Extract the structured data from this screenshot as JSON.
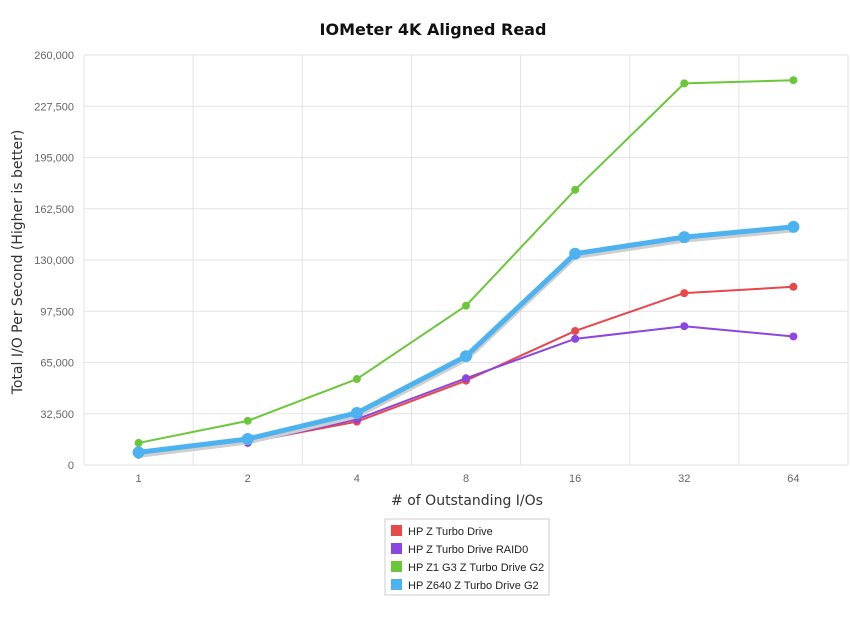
{
  "chart_data": {
    "type": "line",
    "title": "IOMeter 4K Aligned Read",
    "xlabel": "# of Outstanding I/Os",
    "ylabel": "Total I/O Per Second (Higher is better)",
    "categories": [
      "1",
      "2",
      "4",
      "8",
      "16",
      "32",
      "64"
    ],
    "y_ticks": [
      "0",
      "32,500",
      "65,000",
      "97,500",
      "130,000",
      "162,500",
      "195,000",
      "227,500",
      "260,000"
    ],
    "ylim": [
      0,
      260000
    ],
    "grid": true,
    "legend_position": "bottom-center",
    "series": [
      {
        "name": "HP Z Turbo Drive",
        "color": "#e8474b",
        "values": [
          7000,
          14500,
          27500,
          53500,
          85000,
          109000,
          113000
        ]
      },
      {
        "name": "HP Z Turbo Drive RAID0",
        "color": "#8b45e0",
        "values": [
          6500,
          14000,
          29000,
          55000,
          80000,
          88000,
          81500
        ]
      },
      {
        "name": "HP Z1 G3 Z Turbo Drive G2",
        "color": "#6bc73a",
        "values": [
          14000,
          28000,
          54500,
          101000,
          174500,
          242000,
          244000
        ]
      },
      {
        "name": "HP Z640 Z Turbo Drive G2",
        "color": "#4db3f0",
        "values": [
          8000,
          16500,
          33000,
          69000,
          134000,
          144500,
          151000
        ]
      }
    ]
  }
}
